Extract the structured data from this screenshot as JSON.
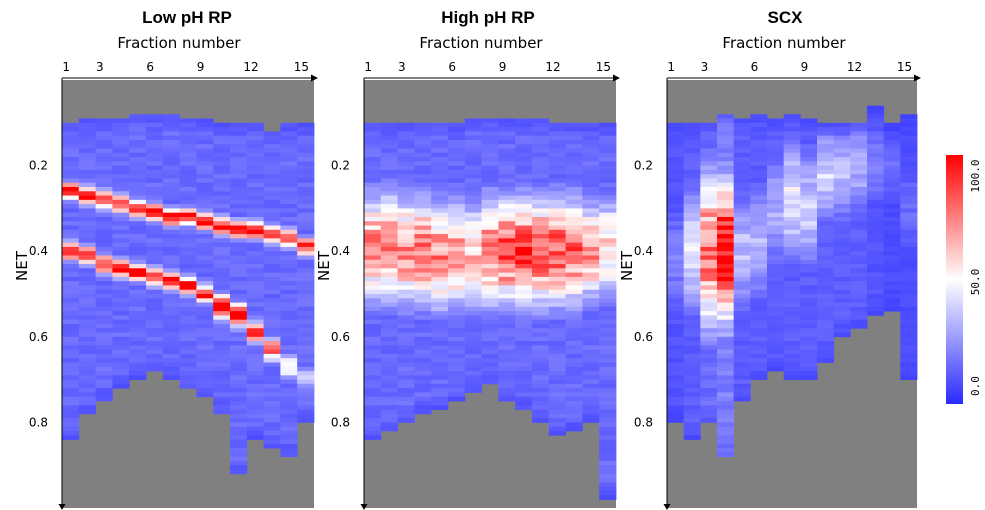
{
  "chart_data": [
    {
      "type": "heatmap",
      "title": "Low pH RP",
      "xlabel": "Fraction number",
      "ylabel": "NET",
      "x_ticks": [
        "1",
        "3",
        "6",
        "9",
        "12",
        "15"
      ],
      "x_tick_values": [
        1,
        3,
        6,
        9,
        12,
        15
      ],
      "y_ticks": [
        "0.2",
        "0.4",
        "0.6",
        "0.8"
      ],
      "y_tick_values": [
        0.2,
        0.4,
        0.6,
        0.8
      ],
      "x_range": [
        1,
        15
      ],
      "ylim": [
        0.0,
        1.0
      ],
      "pattern": "two diagonal high-intensity bands; NET peak rises with fraction number",
      "columns": [
        {
          "fraction": 1,
          "net_min": 0.1,
          "net_max": 0.84,
          "bands": [
            {
              "center": 0.26,
              "width": 0.015,
              "peak": 100
            },
            {
              "center": 0.4,
              "width": 0.015,
              "peak": 100
            }
          ],
          "baseline": 15
        },
        {
          "fraction": 2,
          "net_min": 0.09,
          "net_max": 0.78,
          "bands": [
            {
              "center": 0.27,
              "width": 0.015,
              "peak": 100
            },
            {
              "center": 0.41,
              "width": 0.015,
              "peak": 100
            }
          ],
          "baseline": 15
        },
        {
          "fraction": 3,
          "net_min": 0.09,
          "net_max": 0.75,
          "bands": [
            {
              "center": 0.28,
              "width": 0.015,
              "peak": 100
            },
            {
              "center": 0.43,
              "width": 0.015,
              "peak": 100
            }
          ],
          "baseline": 15
        },
        {
          "fraction": 4,
          "net_min": 0.09,
          "net_max": 0.72,
          "bands": [
            {
              "center": 0.29,
              "width": 0.015,
              "peak": 100
            },
            {
              "center": 0.44,
              "width": 0.015,
              "peak": 100
            }
          ],
          "baseline": 15
        },
        {
          "fraction": 5,
          "net_min": 0.08,
          "net_max": 0.7,
          "bands": [
            {
              "center": 0.3,
              "width": 0.015,
              "peak": 100
            },
            {
              "center": 0.45,
              "width": 0.015,
              "peak": 100
            }
          ],
          "baseline": 15
        },
        {
          "fraction": 6,
          "net_min": 0.08,
          "net_max": 0.68,
          "bands": [
            {
              "center": 0.31,
              "width": 0.015,
              "peak": 100
            },
            {
              "center": 0.46,
              "width": 0.015,
              "peak": 100
            }
          ],
          "baseline": 15
        },
        {
          "fraction": 7,
          "net_min": 0.08,
          "net_max": 0.7,
          "bands": [
            {
              "center": 0.32,
              "width": 0.015,
              "peak": 100
            },
            {
              "center": 0.47,
              "width": 0.015,
              "peak": 100
            }
          ],
          "baseline": 15
        },
        {
          "fraction": 8,
          "net_min": 0.09,
          "net_max": 0.72,
          "bands": [
            {
              "center": 0.32,
              "width": 0.015,
              "peak": 100
            },
            {
              "center": 0.48,
              "width": 0.015,
              "peak": 100
            }
          ],
          "baseline": 15
        },
        {
          "fraction": 9,
          "net_min": 0.09,
          "net_max": 0.74,
          "bands": [
            {
              "center": 0.33,
              "width": 0.015,
              "peak": 100
            },
            {
              "center": 0.5,
              "width": 0.015,
              "peak": 100
            }
          ],
          "baseline": 15
        },
        {
          "fraction": 10,
          "net_min": 0.1,
          "net_max": 0.78,
          "bands": [
            {
              "center": 0.34,
              "width": 0.015,
              "peak": 100
            },
            {
              "center": 0.53,
              "width": 0.02,
              "peak": 100
            }
          ],
          "baseline": 15
        },
        {
          "fraction": 11,
          "net_min": 0.1,
          "net_max": 0.92,
          "bands": [
            {
              "center": 0.35,
              "width": 0.015,
              "peak": 100
            },
            {
              "center": 0.55,
              "width": 0.02,
              "peak": 100
            }
          ],
          "baseline": 15
        },
        {
          "fraction": 12,
          "net_min": 0.1,
          "net_max": 0.84,
          "bands": [
            {
              "center": 0.35,
              "width": 0.015,
              "peak": 100
            },
            {
              "center": 0.59,
              "width": 0.02,
              "peak": 85
            }
          ],
          "baseline": 15
        },
        {
          "fraction": 13,
          "net_min": 0.12,
          "net_max": 0.86,
          "bands": [
            {
              "center": 0.36,
              "width": 0.015,
              "peak": 100
            },
            {
              "center": 0.63,
              "width": 0.02,
              "peak": 80
            }
          ],
          "baseline": 15
        },
        {
          "fraction": 14,
          "net_min": 0.1,
          "net_max": 0.88,
          "bands": [
            {
              "center": 0.37,
              "width": 0.015,
              "peak": 100
            },
            {
              "center": 0.67,
              "width": 0.02,
              "peak": 60
            }
          ],
          "baseline": 15
        },
        {
          "fraction": 15,
          "net_min": 0.1,
          "net_max": 0.8,
          "bands": [
            {
              "center": 0.39,
              "width": 0.015,
              "peak": 100
            },
            {
              "center": 0.7,
              "width": 0.02,
              "peak": 40
            }
          ],
          "baseline": 15
        }
      ]
    },
    {
      "type": "heatmap",
      "title": "High pH RP",
      "xlabel": "Fraction number",
      "ylabel": "NET",
      "x_ticks": [
        "1",
        "3",
        "6",
        "9",
        "12",
        "15"
      ],
      "x_tick_values": [
        1,
        3,
        6,
        9,
        12,
        15
      ],
      "y_ticks": [
        "0.2",
        "0.4",
        "0.6",
        "0.8"
      ],
      "y_tick_values": [
        0.2,
        0.4,
        0.6,
        0.8
      ],
      "x_range": [
        1,
        15
      ],
      "ylim": [
        0.0,
        1.0
      ],
      "pattern": "broad medium-high intensity across NET 0.25-0.55 in all fractions",
      "columns": [
        {
          "fraction": 1,
          "net_min": 0.1,
          "net_max": 0.84,
          "bands": [
            {
              "center": 0.39,
              "width": 0.09,
              "peak": 72
            }
          ],
          "baseline": 15
        },
        {
          "fraction": 2,
          "net_min": 0.1,
          "net_max": 0.82,
          "bands": [
            {
              "center": 0.39,
              "width": 0.09,
              "peak": 75
            }
          ],
          "baseline": 15
        },
        {
          "fraction": 3,
          "net_min": 0.1,
          "net_max": 0.8,
          "bands": [
            {
              "center": 0.4,
              "width": 0.09,
              "peak": 75
            }
          ],
          "baseline": 15
        },
        {
          "fraction": 4,
          "net_min": 0.1,
          "net_max": 0.78,
          "bands": [
            {
              "center": 0.4,
              "width": 0.09,
              "peak": 76
            }
          ],
          "baseline": 15
        },
        {
          "fraction": 5,
          "net_min": 0.1,
          "net_max": 0.77,
          "bands": [
            {
              "center": 0.41,
              "width": 0.09,
              "peak": 74
            }
          ],
          "baseline": 15
        },
        {
          "fraction": 6,
          "net_min": 0.1,
          "net_max": 0.75,
          "bands": [
            {
              "center": 0.41,
              "width": 0.09,
              "peak": 70
            }
          ],
          "baseline": 15
        },
        {
          "fraction": 7,
          "net_min": 0.09,
          "net_max": 0.73,
          "bands": [
            {
              "center": 0.41,
              "width": 0.09,
              "peak": 62
            }
          ],
          "baseline": 15
        },
        {
          "fraction": 8,
          "net_min": 0.09,
          "net_max": 0.71,
          "bands": [
            {
              "center": 0.4,
              "width": 0.09,
              "peak": 78
            }
          ],
          "baseline": 15
        },
        {
          "fraction": 9,
          "net_min": 0.09,
          "net_max": 0.75,
          "bands": [
            {
              "center": 0.4,
              "width": 0.09,
              "peak": 84
            }
          ],
          "baseline": 15
        },
        {
          "fraction": 10,
          "net_min": 0.09,
          "net_max": 0.77,
          "bands": [
            {
              "center": 0.4,
              "width": 0.09,
              "peak": 86
            }
          ],
          "baseline": 15
        },
        {
          "fraction": 11,
          "net_min": 0.09,
          "net_max": 0.8,
          "bands": [
            {
              "center": 0.4,
              "width": 0.09,
              "peak": 84
            }
          ],
          "baseline": 15
        },
        {
          "fraction": 12,
          "net_min": 0.1,
          "net_max": 0.83,
          "bands": [
            {
              "center": 0.4,
              "width": 0.09,
              "peak": 82
            }
          ],
          "baseline": 15
        },
        {
          "fraction": 13,
          "net_min": 0.1,
          "net_max": 0.82,
          "bands": [
            {
              "center": 0.4,
              "width": 0.09,
              "peak": 80
            }
          ],
          "baseline": 15
        },
        {
          "fraction": 14,
          "net_min": 0.1,
          "net_max": 0.8,
          "bands": [
            {
              "center": 0.4,
              "width": 0.08,
              "peak": 72
            }
          ],
          "baseline": 15
        },
        {
          "fraction": 15,
          "net_min": 0.1,
          "net_max": 0.98,
          "bands": [
            {
              "center": 0.39,
              "width": 0.08,
              "peak": 60
            }
          ],
          "baseline": 15
        }
      ]
    },
    {
      "type": "heatmap",
      "title": "SCX",
      "xlabel": "Fraction number",
      "ylabel": "NET",
      "x_ticks": [
        "1",
        "3",
        "6",
        "9",
        "12",
        "15"
      ],
      "x_tick_values": [
        1,
        3,
        6,
        9,
        12,
        15
      ],
      "y_ticks": [
        "0.2",
        "0.4",
        "0.6",
        "0.8"
      ],
      "y_tick_values": [
        0.2,
        0.4,
        0.6,
        0.8
      ],
      "x_range": [
        1,
        15
      ],
      "ylim": [
        0.0,
        1.0
      ],
      "pattern": "strong intensity concentrated in fractions 3-4; weak elsewhere",
      "columns": [
        {
          "fraction": 1,
          "net_min": 0.1,
          "net_max": 0.8,
          "bands": [
            {
              "center": 0.42,
              "width": 0.1,
              "peak": 20
            }
          ],
          "baseline": 10
        },
        {
          "fraction": 2,
          "net_min": 0.1,
          "net_max": 0.84,
          "bands": [
            {
              "center": 0.4,
              "width": 0.1,
              "peak": 45
            }
          ],
          "baseline": 12
        },
        {
          "fraction": 3,
          "net_min": 0.1,
          "net_max": 0.8,
          "bands": [
            {
              "center": 0.4,
              "width": 0.13,
              "peak": 80
            }
          ],
          "baseline": 15
        },
        {
          "fraction": 4,
          "net_min": 0.08,
          "net_max": 0.88,
          "bands": [
            {
              "center": 0.4,
              "width": 0.12,
              "peak": 100
            }
          ],
          "baseline": 20
        },
        {
          "fraction": 5,
          "net_min": 0.09,
          "net_max": 0.75,
          "bands": [
            {
              "center": 0.4,
              "width": 0.1,
              "peak": 35
            }
          ],
          "baseline": 12
        },
        {
          "fraction": 6,
          "net_min": 0.08,
          "net_max": 0.7,
          "bands": [
            {
              "center": 0.38,
              "width": 0.1,
              "peak": 32
            }
          ],
          "baseline": 12
        },
        {
          "fraction": 7,
          "net_min": 0.09,
          "net_max": 0.68,
          "bands": [
            {
              "center": 0.3,
              "width": 0.1,
              "peak": 30
            }
          ],
          "baseline": 12
        },
        {
          "fraction": 8,
          "net_min": 0.08,
          "net_max": 0.7,
          "bands": [
            {
              "center": 0.28,
              "width": 0.1,
              "peak": 45
            }
          ],
          "baseline": 12
        },
        {
          "fraction": 9,
          "net_min": 0.09,
          "net_max": 0.7,
          "bands": [
            {
              "center": 0.3,
              "width": 0.1,
              "peak": 38
            }
          ],
          "baseline": 12
        },
        {
          "fraction": 10,
          "net_min": 0.1,
          "net_max": 0.66,
          "bands": [
            {
              "center": 0.22,
              "width": 0.08,
              "peak": 40
            }
          ],
          "baseline": 12
        },
        {
          "fraction": 11,
          "net_min": 0.1,
          "net_max": 0.6,
          "bands": [
            {
              "center": 0.22,
              "width": 0.08,
              "peak": 35
            }
          ],
          "baseline": 12
        },
        {
          "fraction": 12,
          "net_min": 0.1,
          "net_max": 0.58,
          "bands": [
            {
              "center": 0.2,
              "width": 0.08,
              "peak": 32
            }
          ],
          "baseline": 12
        },
        {
          "fraction": 13,
          "net_min": 0.06,
          "net_max": 0.55,
          "bands": [
            {
              "center": 0.2,
              "width": 0.08,
              "peak": 20
            }
          ],
          "baseline": 10
        },
        {
          "fraction": 14,
          "net_min": 0.1,
          "net_max": 0.54,
          "bands": [
            {
              "center": 0.2,
              "width": 0.08,
              "peak": 15
            }
          ],
          "baseline": 8
        },
        {
          "fraction": 15,
          "net_min": 0.08,
          "net_max": 0.7,
          "bands": [
            {
              "center": 0.3,
              "width": 0.1,
              "peak": 15
            }
          ],
          "baseline": 8
        }
      ]
    }
  ],
  "colorbar": {
    "min": 0,
    "max": 100,
    "ticks": [
      "0.0",
      "50.0",
      "100.0"
    ],
    "tick_values": [
      0,
      50,
      100
    ],
    "colors": [
      "#2a2aff",
      "#ffffff",
      "#ff0000"
    ]
  },
  "colors": {
    "background_cell": "#808080"
  }
}
